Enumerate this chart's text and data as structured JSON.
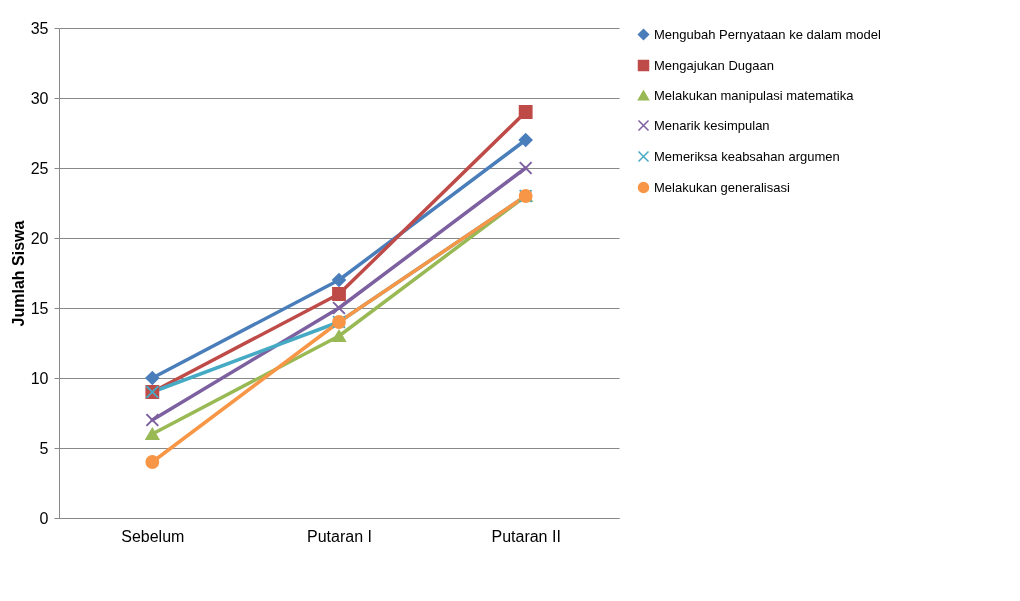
{
  "chart_data": {
    "type": "line",
    "ylabel": "Jumlah Siswa",
    "categories": [
      "Sebelum",
      "Putaran I",
      "Putaran II"
    ],
    "ylim": [
      0,
      35
    ],
    "yticks": [
      0,
      5,
      10,
      15,
      20,
      25,
      30,
      35
    ],
    "grid": "y",
    "legend": "right",
    "series": [
      {
        "name": "Mengubah Pernyataan ke dalam model",
        "color": "#4a7ebb",
        "marker": "diamond",
        "values": [
          10,
          17,
          27
        ]
      },
      {
        "name": "Mengajukan Dugaan",
        "color": "#be4b48",
        "marker": "square",
        "values": [
          9,
          16,
          29
        ]
      },
      {
        "name": "Melakukan manipulasi matematika",
        "color": "#98b954",
        "marker": "triangle",
        "values": [
          6,
          13,
          23
        ]
      },
      {
        "name": "Menarik kesimpulan",
        "color": "#7d60a0",
        "marker": "cross",
        "values": [
          7,
          15,
          25
        ]
      },
      {
        "name": "Memeriksa keabsahan argumen",
        "color": "#46aac5",
        "marker": "cross",
        "values": [
          9,
          14,
          23
        ]
      },
      {
        "name": "Melakukan generalisasi",
        "color": "#f79646",
        "marker": "circle",
        "values": [
          4,
          14,
          23
        ]
      }
    ]
  }
}
